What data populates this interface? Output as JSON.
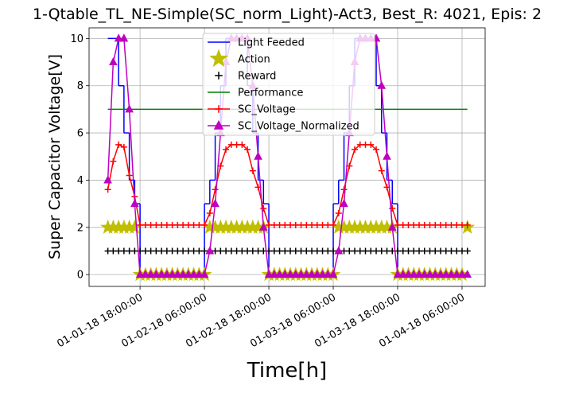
{
  "chart_data": {
    "type": "line",
    "title": "1-Qtable_TL_NE-Simple(SC_norm_Light)-Act3, Best_R: 4021, Epis: 2",
    "x_label": "Time[h]",
    "y_label": "Super Capacitor Voltage[V]",
    "x": [
      "01-01-18 12:00:00",
      "01-01-18 13:00:00",
      "01-01-18 14:00:00",
      "01-01-18 15:00:00",
      "01-01-18 16:00:00",
      "01-01-18 17:00:00",
      "01-01-18 18:00:00",
      "01-01-18 19:00:00",
      "01-01-18 20:00:00",
      "01-01-18 21:00:00",
      "01-01-18 22:00:00",
      "01-01-18 23:00:00",
      "01-02-18 00:00:00",
      "01-02-18 01:00:00",
      "01-02-18 02:00:00",
      "01-02-18 03:00:00",
      "01-02-18 04:00:00",
      "01-02-18 05:00:00",
      "01-02-18 06:00:00",
      "01-02-18 07:00:00",
      "01-02-18 08:00:00",
      "01-02-18 09:00:00",
      "01-02-18 10:00:00",
      "01-02-18 11:00:00",
      "01-02-18 12:00:00",
      "01-02-18 13:00:00",
      "01-02-18 14:00:00",
      "01-02-18 15:00:00",
      "01-02-18 16:00:00",
      "01-02-18 17:00:00",
      "01-02-18 18:00:00",
      "01-02-18 19:00:00",
      "01-02-18 20:00:00",
      "01-02-18 21:00:00",
      "01-02-18 22:00:00",
      "01-02-18 23:00:00",
      "01-03-18 00:00:00",
      "01-03-18 01:00:00",
      "01-03-18 02:00:00",
      "01-03-18 03:00:00",
      "01-03-18 04:00:00",
      "01-03-18 05:00:00",
      "01-03-18 06:00:00",
      "01-03-18 07:00:00",
      "01-03-18 08:00:00",
      "01-03-18 09:00:00",
      "01-03-18 10:00:00",
      "01-03-18 11:00:00",
      "01-03-18 12:00:00",
      "01-03-18 13:00:00",
      "01-03-18 14:00:00",
      "01-03-18 15:00:00",
      "01-03-18 16:00:00",
      "01-03-18 17:00:00",
      "01-03-18 18:00:00",
      "01-03-18 19:00:00",
      "01-03-18 20:00:00",
      "01-03-18 21:00:00",
      "01-03-18 22:00:00",
      "01-03-18 23:00:00",
      "01-04-18 00:00:00",
      "01-04-18 01:00:00",
      "01-04-18 02:00:00",
      "01-04-18 03:00:00",
      "01-04-18 04:00:00",
      "01-04-18 05:00:00",
      "01-04-18 06:00:00",
      "01-04-18 07:00:00"
    ],
    "series": [
      {
        "name": "Light Feeded",
        "color": "#0000ff",
        "marker": "none",
        "line": "steps",
        "values": [
          10,
          10,
          8,
          6,
          4,
          3,
          0,
          0,
          0,
          0,
          0,
          0,
          0,
          0,
          0,
          0,
          0,
          0,
          3,
          4,
          6,
          8,
          10,
          10,
          10,
          10,
          8,
          6,
          4,
          3,
          0,
          0,
          0,
          0,
          0,
          0,
          0,
          0,
          0,
          0,
          0,
          0,
          3,
          4,
          6,
          8,
          10,
          10,
          10,
          10,
          8,
          6,
          4,
          3,
          0,
          0,
          0,
          0,
          0,
          0,
          0,
          0,
          0,
          0,
          0,
          0,
          0,
          0
        ]
      },
      {
        "name": "Action",
        "color": "#bfbf00",
        "marker": "star",
        "line": "none",
        "values": [
          2,
          2,
          2,
          2,
          2,
          2,
          0,
          0,
          0,
          0,
          0,
          0,
          0,
          0,
          0,
          0,
          0,
          0,
          0,
          2,
          2,
          2,
          2,
          2,
          2,
          2,
          2,
          2,
          2,
          2,
          0,
          0,
          0,
          0,
          0,
          0,
          0,
          0,
          0,
          0,
          0,
          0,
          0,
          2,
          2,
          2,
          2,
          2,
          2,
          2,
          2,
          2,
          2,
          2,
          0,
          0,
          0,
          0,
          0,
          0,
          0,
          0,
          0,
          0,
          0,
          0,
          0,
          2
        ]
      },
      {
        "name": "Reward",
        "color": "#000000",
        "marker": "plus",
        "line": "none",
        "values": [
          1,
          1,
          1,
          1,
          1,
          1,
          1,
          1,
          1,
          1,
          1,
          1,
          1,
          1,
          1,
          1,
          1,
          1,
          1,
          1,
          1,
          1,
          1,
          1,
          1,
          1,
          1,
          1,
          1,
          1,
          1,
          1,
          1,
          1,
          1,
          1,
          1,
          1,
          1,
          1,
          1,
          1,
          1,
          1,
          1,
          1,
          1,
          1,
          1,
          1,
          1,
          1,
          1,
          1,
          1,
          1,
          1,
          1,
          1,
          1,
          1,
          1,
          1,
          1,
          1,
          1,
          1,
          1
        ]
      },
      {
        "name": "Performance",
        "color": "#008000",
        "marker": "none",
        "line": "solid",
        "values": [
          7,
          7,
          7,
          7,
          7,
          7,
          7,
          7,
          7,
          7,
          7,
          7,
          7,
          7,
          7,
          7,
          7,
          7,
          7,
          7,
          7,
          7,
          7,
          7,
          7,
          7,
          7,
          7,
          7,
          7,
          7,
          7,
          7,
          7,
          7,
          7,
          7,
          7,
          7,
          7,
          7,
          7,
          7,
          7,
          7,
          7,
          7,
          7,
          7,
          7,
          7,
          7,
          7,
          7,
          7,
          7,
          7,
          7,
          7,
          7,
          7,
          7,
          7,
          7,
          7,
          7,
          7,
          7
        ]
      },
      {
        "name": "SC_Voltage",
        "color": "#ff0000",
        "marker": "plus",
        "line": "solid",
        "values": [
          3.6,
          4.8,
          5.5,
          5.4,
          4.2,
          3.3,
          2.1,
          2.1,
          2.1,
          2.1,
          2.1,
          2.1,
          2.1,
          2.1,
          2.1,
          2.1,
          2.1,
          2.1,
          2.1,
          2.6,
          3.6,
          4.6,
          5.3,
          5.5,
          5.5,
          5.5,
          5.3,
          4.4,
          3.7,
          2.8,
          2.1,
          2.1,
          2.1,
          2.1,
          2.1,
          2.1,
          2.1,
          2.1,
          2.1,
          2.1,
          2.1,
          2.1,
          2.1,
          2.6,
          3.6,
          4.6,
          5.3,
          5.5,
          5.5,
          5.5,
          5.3,
          4.4,
          3.7,
          2.8,
          2.1,
          2.1,
          2.1,
          2.1,
          2.1,
          2.1,
          2.1,
          2.1,
          2.1,
          2.1,
          2.1,
          2.1,
          2.1,
          2.1
        ]
      },
      {
        "name": "SC_Voltage_Normalized",
        "color": "#bf00bf",
        "marker": "triangle",
        "line": "solid",
        "values": [
          4,
          9,
          10,
          10,
          7,
          3,
          0,
          0,
          0,
          0,
          0,
          0,
          0,
          0,
          0,
          0,
          0,
          0,
          0,
          1,
          3,
          6,
          9,
          10,
          10,
          10,
          10,
          8,
          5,
          2,
          0,
          0,
          0,
          0,
          0,
          0,
          0,
          0,
          0,
          0,
          0,
          0,
          0,
          1,
          3,
          6,
          9,
          10,
          10,
          10,
          10,
          8,
          5,
          2,
          0,
          0,
          0,
          0,
          0,
          0,
          0,
          0,
          0,
          0,
          0,
          0,
          0,
          0
        ]
      }
    ],
    "xlim": [
      "01-01-18 08:30:00",
      "01-04-18 10:18:00"
    ],
    "xticks": [
      "01-01-18 18:00:00",
      "01-02-18 06:00:00",
      "01-02-18 18:00:00",
      "01-03-18 06:00:00",
      "01-03-18 18:00:00",
      "01-04-18 06:00:00"
    ],
    "ylim": [
      -0.5,
      10.45
    ],
    "yticks": [
      0,
      2,
      4,
      6,
      8,
      10
    ],
    "grid": true,
    "legend": "upper center"
  }
}
